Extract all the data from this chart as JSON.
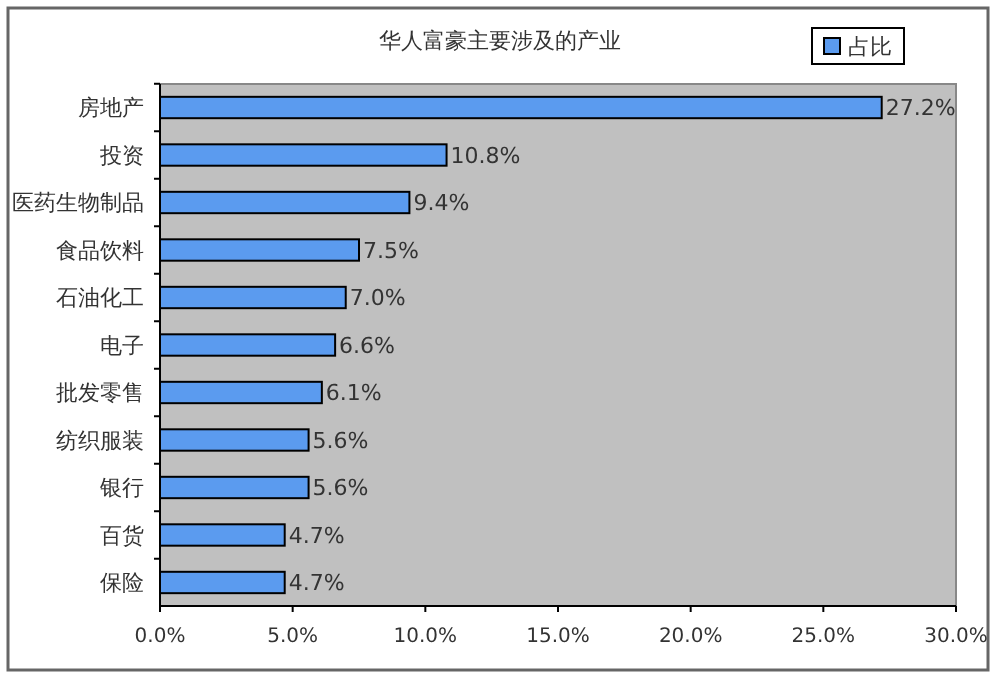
{
  "chart_data": {
    "type": "bar",
    "orientation": "horizontal",
    "title": "华人富豪主要涉及的产业",
    "categories": [
      "房地产",
      "投资",
      "医药生物制品",
      "食品饮料",
      "石油化工",
      "电子",
      "批发零售",
      "纺织服装",
      "银行",
      "百货",
      "保险"
    ],
    "series": [
      {
        "name": "占比",
        "color": "#5b9bef",
        "values": [
          27.2,
          10.8,
          9.4,
          7.5,
          7.0,
          6.6,
          6.1,
          5.6,
          5.6,
          4.7,
          4.7
        ],
        "value_labels": [
          "27.2%",
          "10.8%",
          "9.4%",
          "7.5%",
          "7.0%",
          "6.6%",
          "6.1%",
          "5.6%",
          "5.6%",
          "4.7%",
          "4.7%"
        ]
      }
    ],
    "xlim": [
      0,
      30
    ],
    "xticks": [
      {
        "value": 0,
        "label": "0.0%"
      },
      {
        "value": 5,
        "label": "5.0%"
      },
      {
        "value": 10,
        "label": "10.0%"
      },
      {
        "value": 15,
        "label": "15.0%"
      },
      {
        "value": 20,
        "label": "20.0%"
      },
      {
        "value": 25,
        "label": "25.0%"
      },
      {
        "value": 30,
        "label": "30.0%"
      }
    ],
    "grid": false,
    "legend": "top right"
  }
}
